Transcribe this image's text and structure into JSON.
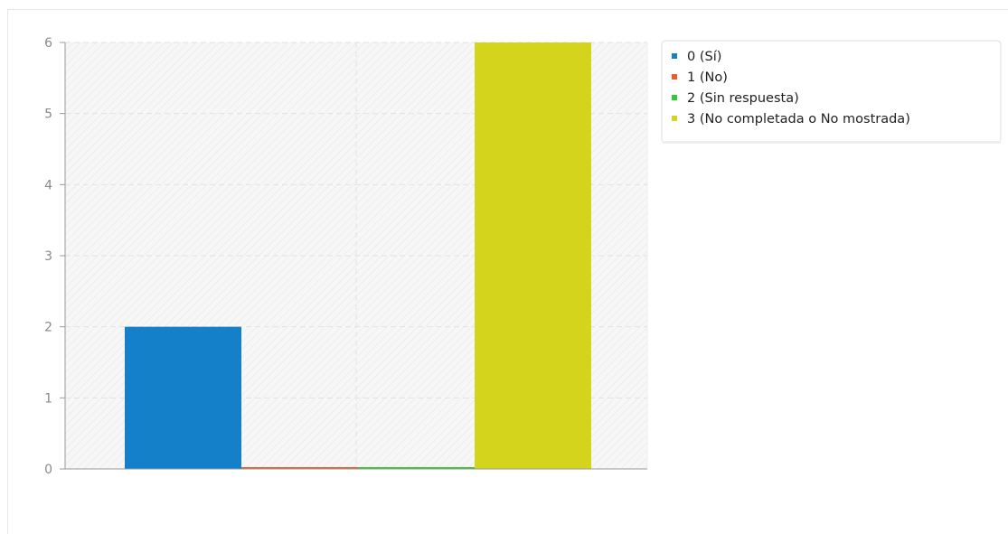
{
  "chart_data": {
    "type": "bar",
    "categories": [
      "0 (Sí)",
      "1 (No)",
      "2 (Sin respuesta)",
      "3 (No completada o No mostrada)"
    ],
    "values": [
      2,
      0,
      0,
      6
    ],
    "colors": [
      "#1380c9",
      "#f05a28",
      "#2ecc2e",
      "#d4d41c"
    ],
    "ylim": [
      0,
      6
    ],
    "yticks": [
      "0",
      "1",
      "2",
      "3",
      "4",
      "5",
      "6"
    ],
    "grid": true,
    "legend_position": "top-right",
    "title": "",
    "xlabel": "",
    "ylabel": ""
  }
}
